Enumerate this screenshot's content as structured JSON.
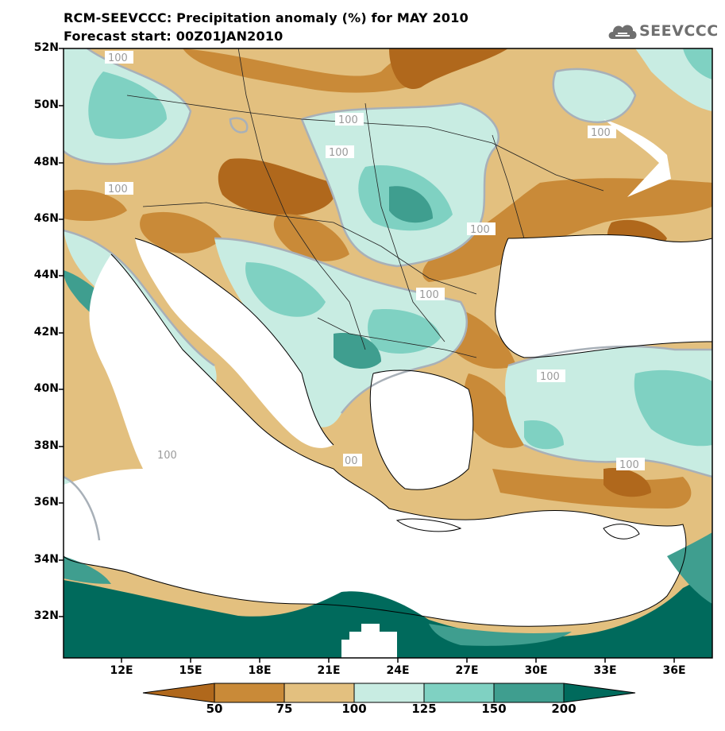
{
  "title": {
    "line1": "RCM-SEEVCCC: Precipitation anomaly (%) for MAY 2010",
    "line2": "Forecast start: 00Z01JAN2010"
  },
  "logo": {
    "text": "SEEVCCC",
    "icon": "cloud-icon"
  },
  "axes": {
    "lat_labels": [
      "52N",
      "50N",
      "48N",
      "46N",
      "44N",
      "42N",
      "40N",
      "38N",
      "36N",
      "34N",
      "32N"
    ],
    "lon_labels": [
      "12E",
      "15E",
      "18E",
      "21E",
      "24E",
      "27E",
      "30E",
      "33E",
      "36E"
    ]
  },
  "colorbar": {
    "labels": [
      "50",
      "75",
      "100",
      "125",
      "150",
      "200"
    ],
    "colors": [
      "#b0681c",
      "#c98a38",
      "#e3c07f",
      "#c8ece2",
      "#7fd1c2",
      "#3f9e8f",
      "#006a5c"
    ]
  },
  "contour_labels": [
    "100",
    "100",
    "100",
    "100",
    "100",
    "100",
    "100",
    "100",
    "100",
    "100",
    "00"
  ],
  "colors": {
    "land_dry": "#e3c07f",
    "land_drier": "#c98a38",
    "land_driest": "#b0681c",
    "wet_light": "#c8ece2",
    "wet_mid": "#7fd1c2",
    "wet_strong": "#3f9e8f",
    "wet_extreme": "#006a5c",
    "sea": "#ffffff",
    "contour": "#a8b0b8"
  }
}
